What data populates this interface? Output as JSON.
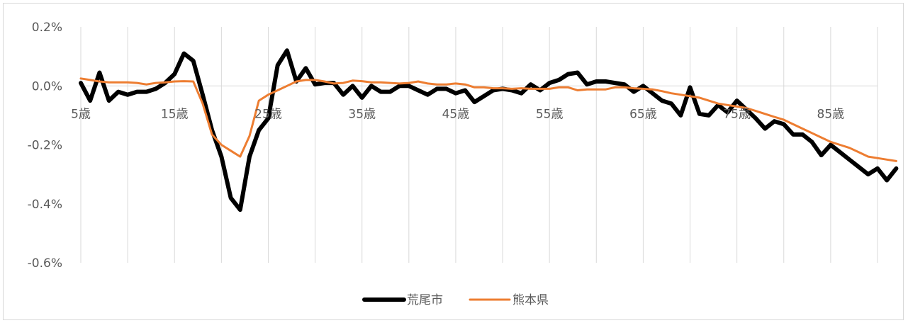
{
  "chart_data": {
    "type": "line",
    "x_start_age": 5,
    "x_end_age": 90,
    "x_tick_labels": [
      "5歳",
      "15歳",
      "25歳",
      "35歳",
      "45歳",
      "55歳",
      "65歳",
      "75歳",
      "85歳"
    ],
    "x_tick_values": [
      5,
      15,
      25,
      35,
      45,
      55,
      65,
      75,
      85
    ],
    "y_tick_labels": [
      "0.2%",
      "0.0%",
      "-0.2%",
      "-0.4%",
      "-0.6%"
    ],
    "y_tick_values": [
      0.2,
      0.0,
      -0.2,
      -0.4,
      -0.6
    ],
    "ylim": [
      -0.6,
      0.2
    ],
    "grid": "vertical",
    "legend_position": "bottom",
    "series": [
      {
        "name": "荒尾市",
        "color": "#000000",
        "values": [
          0.01,
          -0.05,
          0.045,
          -0.05,
          -0.02,
          -0.03,
          -0.02,
          -0.02,
          -0.01,
          0.01,
          0.04,
          0.11,
          0.085,
          -0.03,
          -0.15,
          -0.24,
          -0.38,
          -0.42,
          -0.24,
          -0.15,
          -0.11,
          0.07,
          0.12,
          0.015,
          0.06,
          0.005,
          0.01,
          0.01,
          -0.03,
          0.0,
          -0.04,
          0.0,
          -0.02,
          -0.02,
          0.0,
          0.0,
          -0.015,
          -0.03,
          -0.01,
          -0.01,
          -0.025,
          -0.015,
          -0.055,
          -0.035,
          -0.015,
          -0.01,
          -0.015,
          -0.025,
          0.005,
          -0.015,
          0.01,
          0.02,
          0.04,
          0.045,
          0.005,
          0.015,
          0.015,
          0.01,
          0.005,
          -0.02,
          0.0,
          -0.025,
          -0.05,
          -0.06,
          -0.1,
          -0.005,
          -0.095,
          -0.1,
          -0.065,
          -0.09,
          -0.05,
          -0.08,
          -0.11,
          -0.145,
          -0.12,
          -0.13,
          -0.165,
          -0.165,
          -0.19,
          -0.235,
          -0.2,
          -0.225,
          -0.25,
          -0.275,
          -0.3,
          -0.28,
          -0.32,
          -0.28
        ]
      },
      {
        "name": "熊本県",
        "color": "#ed7d31",
        "values": [
          0.025,
          0.02,
          0.015,
          0.012,
          0.012,
          0.012,
          0.01,
          0.005,
          0.01,
          0.012,
          0.015,
          0.016,
          0.015,
          -0.06,
          -0.165,
          -0.2,
          -0.22,
          -0.24,
          -0.17,
          -0.05,
          -0.03,
          -0.015,
          0.0,
          0.015,
          0.02,
          0.02,
          0.015,
          0.008,
          0.01,
          0.018,
          0.016,
          0.012,
          0.012,
          0.01,
          0.008,
          0.01,
          0.015,
          0.008,
          0.005,
          0.005,
          0.008,
          0.005,
          -0.005,
          -0.005,
          -0.008,
          -0.008,
          -0.01,
          -0.008,
          -0.01,
          -0.01,
          -0.01,
          -0.005,
          -0.005,
          -0.015,
          -0.012,
          -0.012,
          -0.012,
          -0.005,
          -0.005,
          -0.008,
          -0.01,
          -0.012,
          -0.018,
          -0.025,
          -0.03,
          -0.035,
          -0.04,
          -0.05,
          -0.06,
          -0.065,
          -0.07,
          -0.075,
          -0.085,
          -0.095,
          -0.105,
          -0.115,
          -0.13,
          -0.145,
          -0.16,
          -0.175,
          -0.19,
          -0.2,
          -0.21,
          -0.225,
          -0.24,
          -0.245,
          -0.25,
          -0.255
        ]
      }
    ]
  }
}
